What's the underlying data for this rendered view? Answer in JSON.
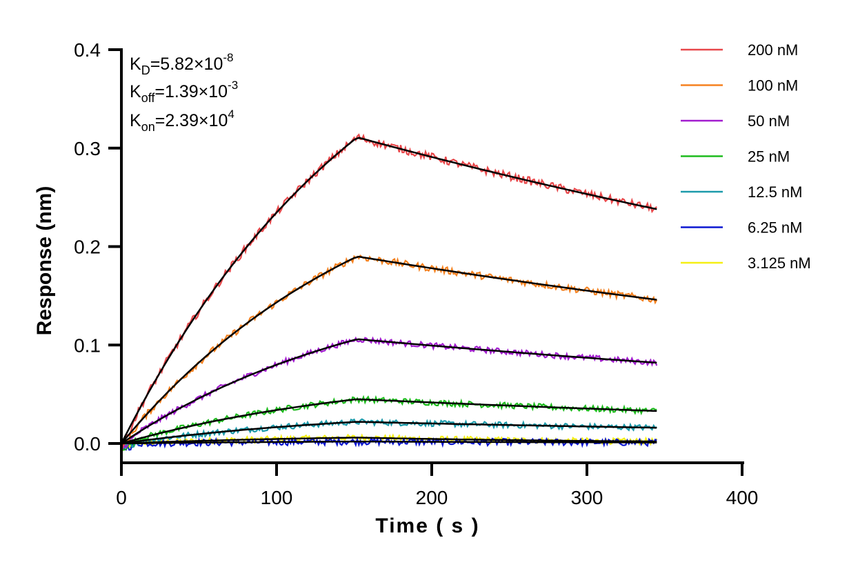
{
  "chart_data": {
    "type": "line",
    "title": "",
    "xlabel": "Time ( s )",
    "ylabel": "Response (nm)",
    "xlim": [
      0,
      400
    ],
    "ylim": [
      -0.02,
      0.4
    ],
    "x_ticks": [
      "0",
      "100",
      "200",
      "300",
      "400"
    ],
    "y_ticks": [
      "0.0",
      "0.1",
      "0.2",
      "0.3",
      "0.4"
    ],
    "grid": false,
    "legend_position": "top-right",
    "kinetics": {
      "kd": {
        "symbol": "K",
        "subscript": "D",
        "value": "=5.82×10",
        "exponent": "-8"
      },
      "koff": {
        "symbol": "K",
        "subscript": "off",
        "value": "=1.39×10",
        "exponent": "-3"
      },
      "kon": {
        "symbol": "K",
        "subscript": "on",
        "value": "=2.39×10",
        "exponent": "4"
      }
    },
    "association_end": 152,
    "x_end": 345,
    "series": [
      {
        "name": "200 nM",
        "color": "#e8474a",
        "peak": 0.311,
        "end": 0.238,
        "noise": 0.004
      },
      {
        "name": "100 nM",
        "color": "#f5811f",
        "peak": 0.19,
        "end": 0.146,
        "noise": 0.0035
      },
      {
        "name": "50 nM",
        "color": "#a21ccf",
        "peak": 0.106,
        "end": 0.082,
        "noise": 0.003
      },
      {
        "name": "25 nM",
        "color": "#1dbb1d",
        "peak": 0.045,
        "end": 0.033,
        "noise": 0.003
      },
      {
        "name": "12.5 nM",
        "color": "#1b9aaa",
        "peak": 0.022,
        "end": 0.016,
        "noise": 0.003
      },
      {
        "name": "6.25 nM",
        "color": "#0c17d1",
        "peak": 0.002,
        "end": 0.001,
        "noise": 0.0035
      },
      {
        "name": "3.125 nM",
        "color": "#f5ef13",
        "peak": 0.006,
        "end": 0.002,
        "noise": 0.003
      }
    ],
    "fit_color": "#000000"
  }
}
